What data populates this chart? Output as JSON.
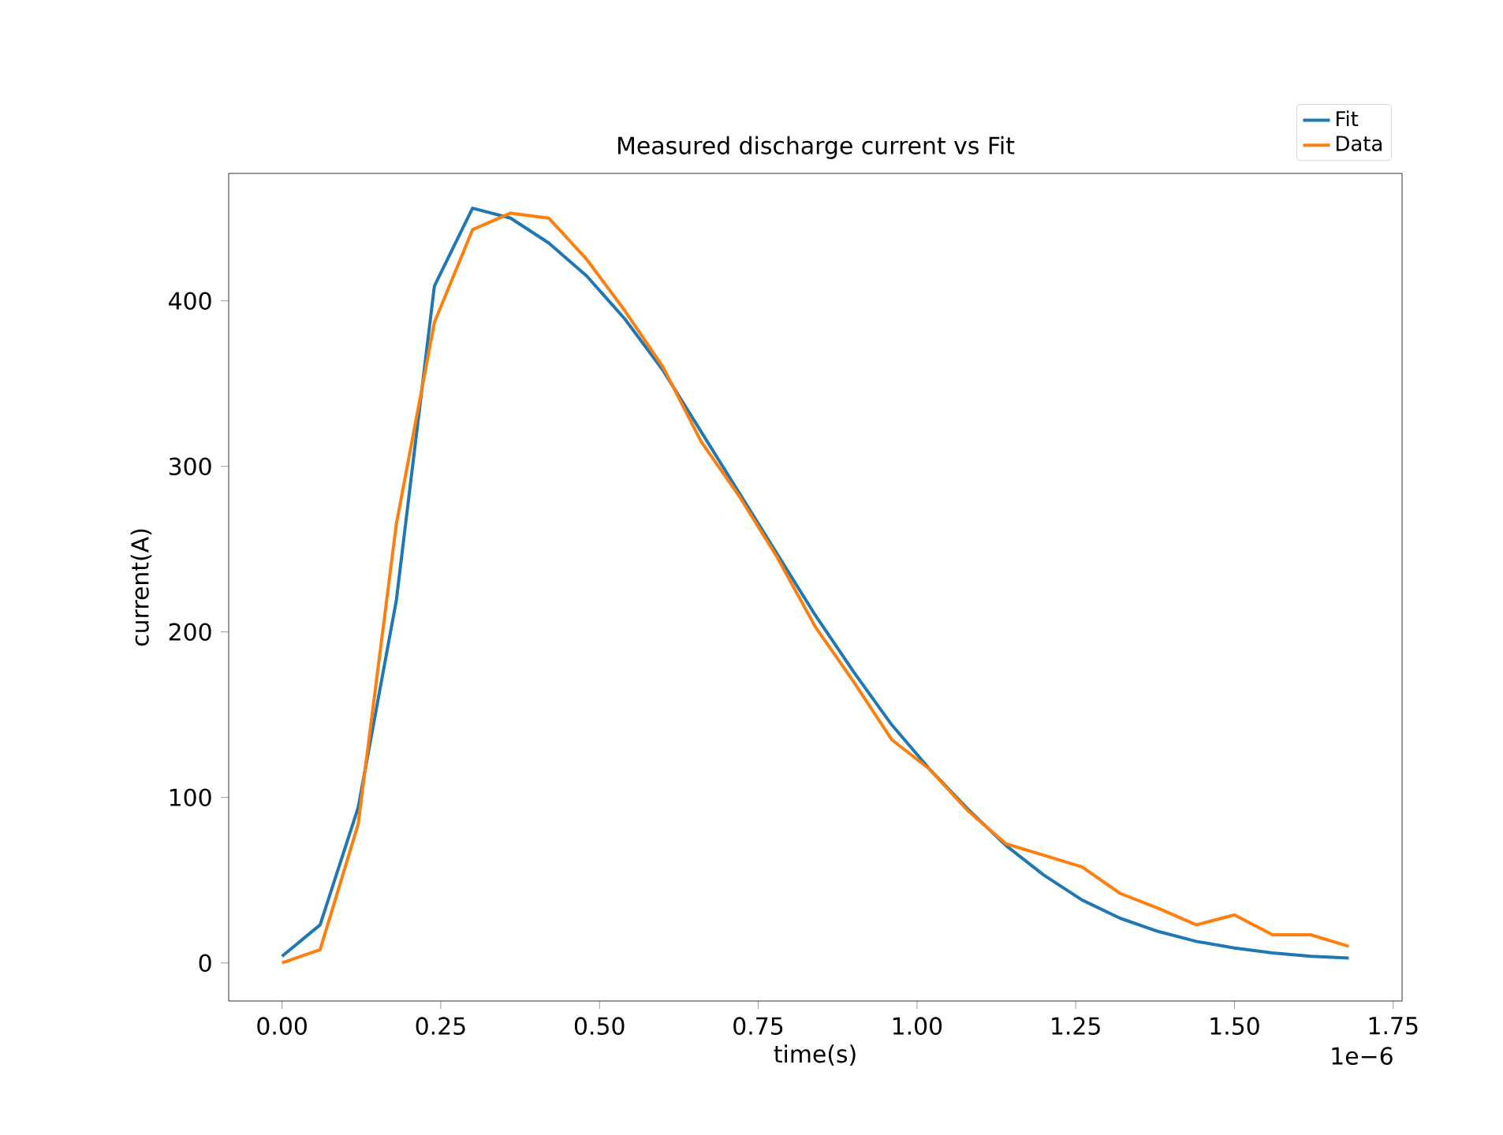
{
  "chart_data": {
    "type": "line",
    "title": "Measured discharge current vs Fit",
    "xlabel": "time(s)",
    "ylabel": "current(A)",
    "annotations": [
      "1e−6"
    ],
    "x": [
      0,
      0.06,
      0.12,
      0.18,
      0.24,
      0.3,
      0.36,
      0.42,
      0.48,
      0.54,
      0.6,
      0.66,
      0.72,
      0.78,
      0.84,
      0.9,
      0.96,
      1.02,
      1.08,
      1.14,
      1.2,
      1.26,
      1.32,
      1.38,
      1.44,
      1.5,
      1.56,
      1.62,
      1.68
    ],
    "series": [
      {
        "name": "Fit",
        "color": "#1f77b4",
        "values": [
          4,
          23,
          94,
          219,
          409,
          456,
          450,
          435,
          415,
          389,
          358,
          321,
          284,
          247,
          210,
          176,
          144,
          117,
          93,
          71,
          53,
          38,
          27,
          19,
          13,
          9,
          6,
          4,
          3
        ]
      },
      {
        "name": "Data",
        "color": "#ff7f0e",
        "values": [
          0,
          8,
          84,
          265,
          387,
          443,
          453,
          450,
          425,
          394,
          360,
          315,
          282,
          245,
          203,
          170,
          135,
          117,
          92,
          72,
          65,
          58,
          42,
          33,
          23,
          29,
          17,
          17,
          10
        ]
      }
    ],
    "xlim": [
      -0.084,
      1.764
    ],
    "ylim": [
      -23,
      477
    ],
    "xticks": [
      {
        "value": 0,
        "label": "0.00"
      },
      {
        "value": 0.25,
        "label": "0.25"
      },
      {
        "value": 0.5,
        "label": "0.50"
      },
      {
        "value": 0.75,
        "label": "0.75"
      },
      {
        "value": 1.0,
        "label": "1.00"
      },
      {
        "value": 1.25,
        "label": "1.25"
      },
      {
        "value": 1.5,
        "label": "1.50"
      },
      {
        "value": 1.75,
        "label": "1.75"
      }
    ],
    "yticks": [
      0,
      100,
      200,
      300,
      400
    ],
    "legend": "top right",
    "marker": "none",
    "line_style": "solid"
  }
}
